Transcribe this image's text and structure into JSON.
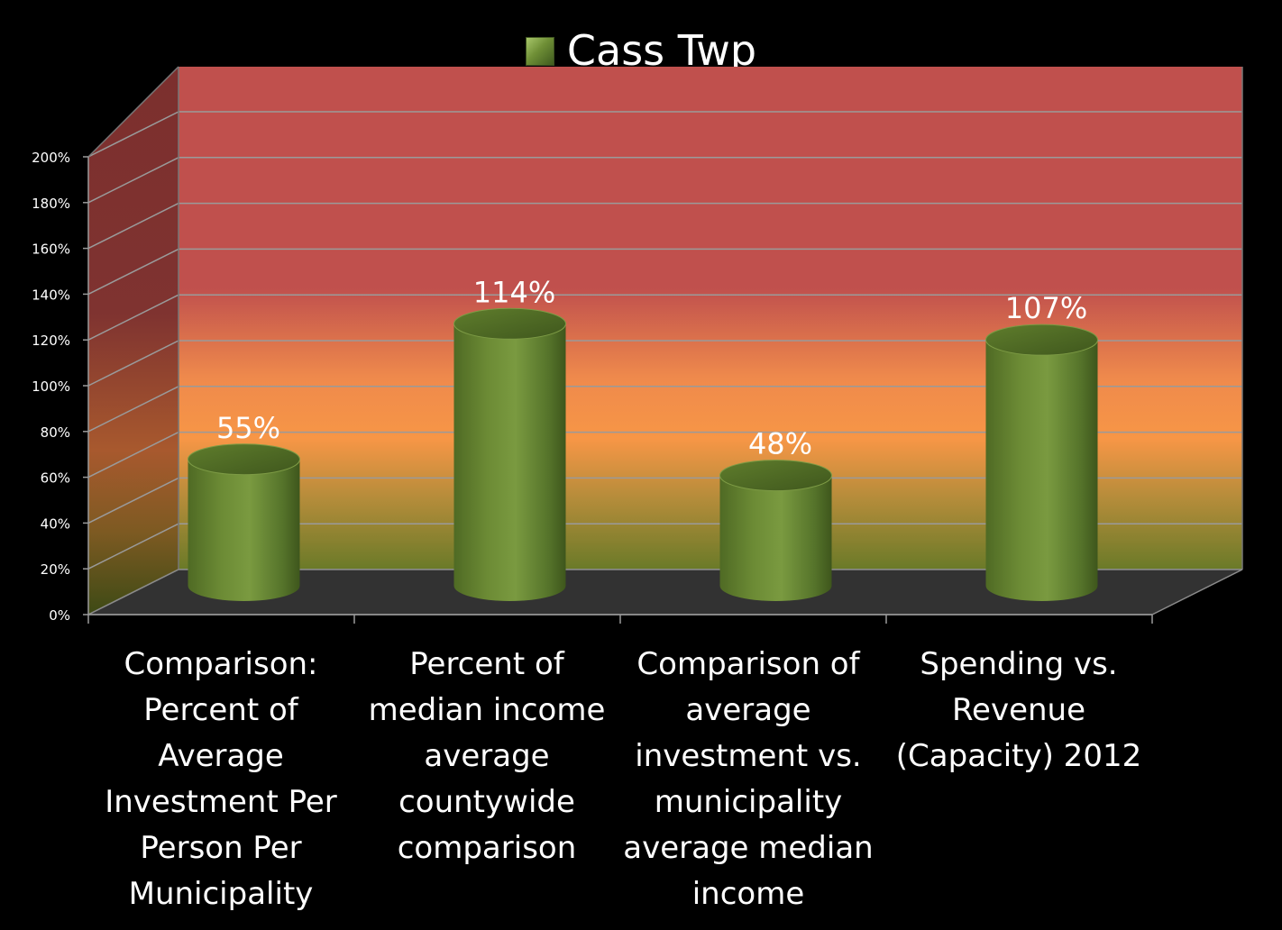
{
  "chart_data": {
    "type": "bar",
    "style": "3d-cylinder",
    "title": "",
    "xlabel": "",
    "ylabel": "",
    "ylim": [
      0,
      200
    ],
    "yticks": [
      "0%",
      "20%",
      "40%",
      "60%",
      "80%",
      "100%",
      "120%",
      "140%",
      "160%",
      "180%",
      "200%"
    ],
    "grid": true,
    "legend_position": "top-center",
    "categories": [
      "Comparison:\nPercent of\nAverage\nInvestment Per\nPerson Per\nMunicipality",
      "Percent of\nmedian income\naverage\ncountywide\ncomparison",
      "Comparison of\naverage\ninvestment vs.\nmunicipality\naverage median\nincome",
      "Spending vs.\nRevenue\n(Capacity) 2012"
    ],
    "series": [
      {
        "name": "Cass Twp",
        "values": [
          55,
          114,
          48,
          107
        ],
        "data_labels": [
          "55%",
          "114%",
          "48%",
          "107%"
        ],
        "color": "#6f8f36"
      }
    ],
    "background_colors": {
      "high_zone": "#c0504d",
      "mid_zone": "#f79646",
      "low_zone": "#6f8f36",
      "floor": "#333333",
      "page": "#000000"
    }
  }
}
